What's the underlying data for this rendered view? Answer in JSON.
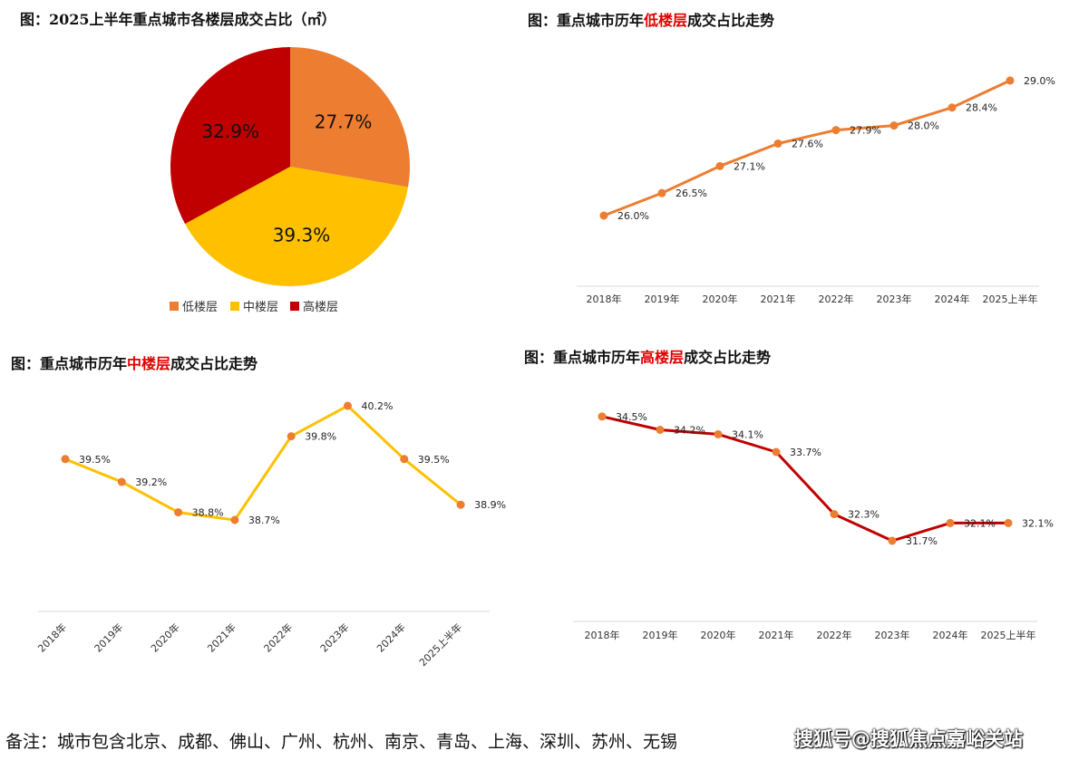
{
  "chart_data": [
    {
      "type": "pie",
      "title": "图：2025上半年重点城市各楼层成交占比（㎡）",
      "slices": [
        {
          "name": "低楼层",
          "value": 27.7,
          "label": "27.7%",
          "color": "#ED7D31"
        },
        {
          "name": "中楼层",
          "value": 39.3,
          "label": "39.3%",
          "color": "#FFC000"
        },
        {
          "name": "高楼层",
          "value": 32.9,
          "label": "32.9%",
          "color": "#C00000"
        }
      ],
      "legend_placement": "bottom"
    },
    {
      "type": "line",
      "title_parts": [
        "图：重点城市历年",
        "低楼层",
        "成交占比走势"
      ],
      "categories": [
        "2018年",
        "2019年",
        "2020年",
        "2021年",
        "2022年",
        "2023年",
        "2024年",
        "2025上半年"
      ],
      "values": [
        26.0,
        26.5,
        27.1,
        27.6,
        27.9,
        28.0,
        28.4,
        29.0
      ],
      "labels": [
        "26.0%",
        "26.5%",
        "27.1%",
        "27.6%",
        "27.9%",
        "28.0%",
        "28.4%",
        "29.0%"
      ],
      "color": "#ED7D31",
      "grid": false
    },
    {
      "type": "line",
      "title_parts": [
        "图：重点城市历年",
        "中楼层",
        "成交占比走势"
      ],
      "categories": [
        "2018年",
        "2019年",
        "2020年",
        "2021年",
        "2022年",
        "2023年",
        "2024年",
        "2025上半年"
      ],
      "values": [
        39.5,
        39.2,
        38.8,
        38.7,
        39.8,
        40.2,
        39.5,
        38.9
      ],
      "labels": [
        "39.5%",
        "39.2%",
        "38.8%",
        "38.7%",
        "39.8%",
        "40.2%",
        "39.5%",
        "38.9%"
      ],
      "color": "#FFC000",
      "marker_color": "#ED7D31",
      "grid": false,
      "tick_rotation": -45
    },
    {
      "type": "line",
      "title_parts": [
        "图：重点城市历年",
        "高楼层",
        "成交占比走势"
      ],
      "categories": [
        "2018年",
        "2019年",
        "2020年",
        "2021年",
        "2022年",
        "2023年",
        "2024年",
        "2025上半年"
      ],
      "values": [
        34.5,
        34.2,
        34.1,
        33.7,
        32.3,
        31.7,
        32.1,
        32.1
      ],
      "labels": [
        "34.5%",
        "34.2%",
        "34.1%",
        "33.7%",
        "32.3%",
        "31.7%",
        "32.1%",
        "32.1%"
      ],
      "color": "#C00000",
      "marker_color": "#ED7D31",
      "grid": false
    }
  ],
  "footer": "备注：城市包含北京、成都、佛山、广州、杭州、南京、青岛、上海、深圳、苏州、无锡",
  "watermark": "搜狐号@搜狐焦点嘉峪关站"
}
